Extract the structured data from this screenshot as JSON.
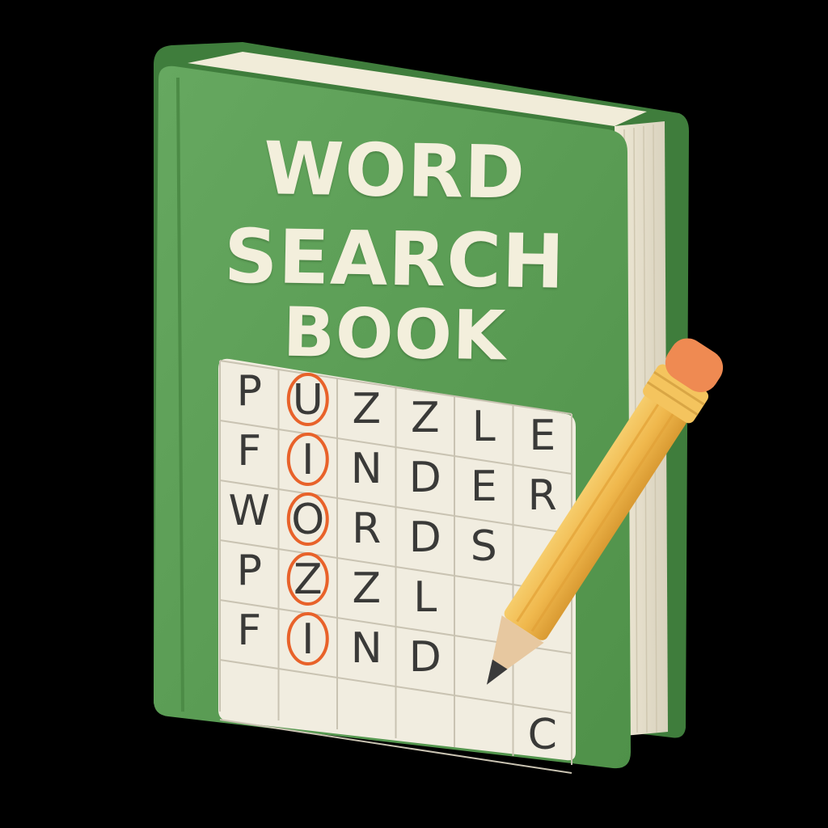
{
  "cover": {
    "title_lines": [
      "WORD",
      "SEARCH",
      "BOOK"
    ]
  },
  "puzzle": {
    "rows": [
      [
        "P",
        "U",
        "Z",
        "Z",
        "L",
        "E"
      ],
      [
        "F",
        "I",
        "N",
        "D",
        "E",
        "R"
      ],
      [
        "W",
        "O",
        "R",
        "D",
        "S",
        ""
      ],
      [
        "P",
        "Z",
        "Z",
        "L",
        "",
        ""
      ],
      [
        "F",
        "I",
        "N",
        "D",
        "",
        ""
      ],
      [
        "",
        "",
        "",
        "",
        "",
        "C"
      ]
    ],
    "circled_column": 1,
    "circled_rows": [
      0,
      1,
      2,
      3,
      4
    ]
  },
  "colors": {
    "background": "#000000",
    "cover_green": "#5a9c55",
    "cover_green_dark": "#3f7d3c",
    "title_cream": "#f3efdc",
    "grid_paper": "#f1ede0",
    "circle_orange": "#e8622a",
    "pencil_yellow": "#f2bd54",
    "eraser_orange": "#ef8a52"
  },
  "icons": [
    "book-icon",
    "pencil-icon"
  ]
}
